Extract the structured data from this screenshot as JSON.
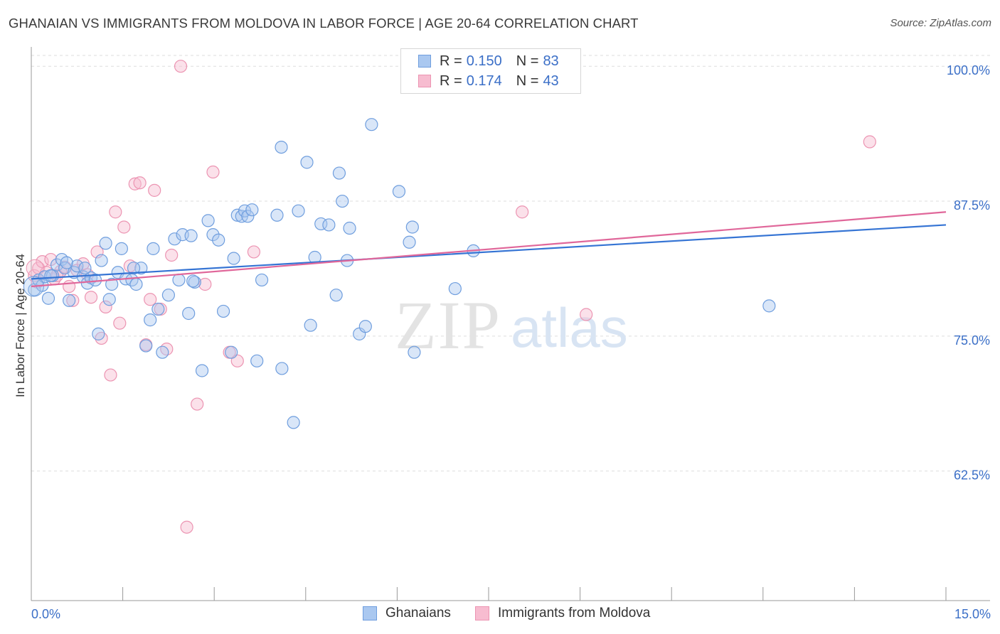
{
  "header": {
    "title": "GHANAIAN VS IMMIGRANTS FROM MOLDOVA IN LABOR FORCE | AGE 20-64 CORRELATION CHART",
    "source": "Source: ZipAtlas.com"
  },
  "legend": {
    "rows": [
      {
        "r_label": "R =",
        "r_value": "0.150",
        "n_label": "N =",
        "n_value": "83"
      },
      {
        "r_label": "R =",
        "r_value": "0.174",
        "n_label": "N =",
        "n_value": "43"
      }
    ]
  },
  "watermark": {
    "zip": "ZIP",
    "atlas": "atlas"
  },
  "colors": {
    "blue_fill": "#aac8f0",
    "blue_stroke": "#6f9ede",
    "blue_line": "#3574d4",
    "pink_fill": "#f7bcd0",
    "pink_stroke": "#ec94b2",
    "pink_line": "#e0679a",
    "tick_text": "#3b6fc7",
    "grid": "#dddddd"
  },
  "chart_data": {
    "type": "scatter",
    "title": "GHANAIAN VS IMMIGRANTS FROM MOLDOVA IN LABOR FORCE | AGE 20-64 CORRELATION CHART",
    "xlabel": "",
    "ylabel": "In Labor Force | Age 20-64",
    "xlim": [
      0,
      15
    ],
    "ylim": [
      50.5,
      101
    ],
    "x_tick_labels": [
      "0.0%",
      "15.0%"
    ],
    "y_ticks": [
      62.5,
      75.0,
      87.5,
      100.0
    ],
    "y_tick_labels": [
      "62.5%",
      "75.0%",
      "87.5%",
      "100.0%"
    ],
    "grid": true,
    "legend_position": "top-center",
    "series": [
      {
        "name": "Ghanaians",
        "r": 0.15,
        "n": 83,
        "trend": {
          "x": [
            0,
            15
          ],
          "y": [
            80.3,
            85.3
          ]
        },
        "points": [
          [
            0.05,
            79.3
          ],
          [
            0.12,
            80.2
          ],
          [
            0.18,
            79.7
          ],
          [
            0.22,
            80.5
          ],
          [
            0.28,
            78.5
          ],
          [
            0.35,
            80.6
          ],
          [
            0.42,
            81.6
          ],
          [
            0.5,
            82.1
          ],
          [
            0.55,
            81.3
          ],
          [
            0.62,
            78.3
          ],
          [
            0.7,
            80.9
          ],
          [
            0.75,
            81.5
          ],
          [
            0.85,
            80.5
          ],
          [
            0.92,
            79.9
          ],
          [
            0.98,
            80.4
          ],
          [
            1.05,
            80.2
          ],
          [
            1.1,
            75.2
          ],
          [
            1.15,
            82.0
          ],
          [
            1.22,
            83.6
          ],
          [
            1.28,
            78.4
          ],
          [
            1.32,
            79.8
          ],
          [
            1.42,
            80.9
          ],
          [
            1.48,
            83.1
          ],
          [
            1.55,
            80.3
          ],
          [
            1.65,
            80.2
          ],
          [
            1.72,
            79.8
          ],
          [
            1.8,
            81.3
          ],
          [
            1.88,
            74.1
          ],
          [
            1.95,
            76.5
          ],
          [
            2.0,
            83.1
          ],
          [
            2.08,
            77.5
          ],
          [
            2.15,
            73.5
          ],
          [
            2.25,
            78.8
          ],
          [
            2.35,
            84.0
          ],
          [
            2.42,
            80.2
          ],
          [
            2.48,
            84.4
          ],
          [
            2.58,
            77.1
          ],
          [
            2.62,
            84.3
          ],
          [
            2.68,
            80.0
          ],
          [
            2.8,
            71.8
          ],
          [
            2.9,
            85.7
          ],
          [
            2.98,
            84.4
          ],
          [
            3.07,
            83.9
          ],
          [
            3.15,
            77.3
          ],
          [
            3.28,
            73.5
          ],
          [
            3.32,
            82.2
          ],
          [
            3.38,
            86.2
          ],
          [
            3.45,
            86.1
          ],
          [
            3.5,
            86.6
          ],
          [
            3.55,
            86.1
          ],
          [
            3.62,
            86.7
          ],
          [
            3.7,
            72.7
          ],
          [
            3.78,
            80.2
          ],
          [
            4.03,
            86.2
          ],
          [
            4.1,
            92.5
          ],
          [
            4.11,
            72.0
          ],
          [
            4.3,
            67.0
          ],
          [
            4.38,
            86.6
          ],
          [
            4.52,
            91.1
          ],
          [
            4.58,
            76.0
          ],
          [
            4.65,
            82.3
          ],
          [
            4.75,
            85.4
          ],
          [
            4.88,
            85.3
          ],
          [
            5.0,
            78.8
          ],
          [
            5.05,
            90.1
          ],
          [
            5.1,
            87.5
          ],
          [
            5.18,
            82.0
          ],
          [
            5.22,
            85.0
          ],
          [
            5.38,
            75.2
          ],
          [
            5.48,
            75.9
          ],
          [
            5.58,
            94.6
          ],
          [
            6.03,
            88.4
          ],
          [
            6.2,
            83.7
          ],
          [
            6.25,
            85.1
          ],
          [
            6.28,
            73.5
          ],
          [
            6.95,
            79.4
          ],
          [
            7.25,
            82.9
          ],
          [
            12.1,
            77.8
          ],
          [
            0.32,
            80.6
          ],
          [
            0.88,
            81.3
          ],
          [
            1.68,
            81.3
          ],
          [
            0.58,
            81.8
          ],
          [
            2.65,
            80.1
          ]
        ]
      },
      {
        "name": "Immigrants from Moldova",
        "r": 0.174,
        "n": 43,
        "trend": {
          "x": [
            0,
            15
          ],
          "y": [
            79.6,
            86.5
          ]
        },
        "points": [
          [
            0.05,
            80.6
          ],
          [
            0.12,
            81.3
          ],
          [
            0.18,
            81.9
          ],
          [
            0.25,
            80.9
          ],
          [
            0.32,
            82.1
          ],
          [
            0.38,
            80.3
          ],
          [
            0.48,
            81.0
          ],
          [
            0.55,
            81.4
          ],
          [
            0.62,
            79.6
          ],
          [
            0.68,
            78.3
          ],
          [
            0.75,
            81.1
          ],
          [
            0.85,
            81.7
          ],
          [
            0.92,
            80.7
          ],
          [
            0.98,
            78.6
          ],
          [
            1.08,
            82.8
          ],
          [
            1.15,
            74.8
          ],
          [
            1.22,
            77.7
          ],
          [
            1.3,
            71.4
          ],
          [
            1.38,
            86.5
          ],
          [
            1.45,
            76.2
          ],
          [
            1.52,
            85.1
          ],
          [
            1.62,
            81.5
          ],
          [
            1.7,
            89.1
          ],
          [
            1.78,
            89.2
          ],
          [
            1.88,
            74.2
          ],
          [
            1.95,
            78.4
          ],
          [
            2.02,
            88.5
          ],
          [
            2.12,
            77.5
          ],
          [
            2.22,
            73.8
          ],
          [
            2.3,
            82.5
          ],
          [
            2.45,
            100.0
          ],
          [
            2.55,
            57.3
          ],
          [
            2.72,
            68.7
          ],
          [
            2.85,
            79.8
          ],
          [
            2.98,
            90.2
          ],
          [
            3.25,
            73.5
          ],
          [
            3.38,
            72.7
          ],
          [
            3.65,
            82.8
          ],
          [
            8.05,
            86.5
          ],
          [
            9.1,
            77.0
          ],
          [
            13.75,
            93.0
          ],
          [
            0.1,
            80.0
          ],
          [
            0.42,
            80.6
          ]
        ]
      }
    ]
  },
  "bottom_legend": {
    "items": [
      {
        "label": "Ghanaians"
      },
      {
        "label": "Immigrants from Moldova"
      }
    ]
  }
}
